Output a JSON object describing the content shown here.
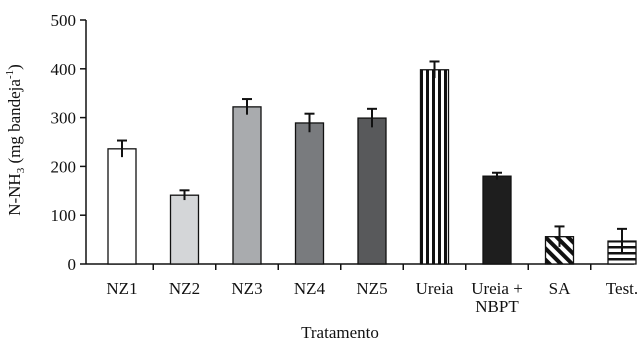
{
  "chart_data": {
    "type": "bar",
    "title": "",
    "xlabel": "Tratamento",
    "ylabel": "N-NH3 (mg bandeja-1)",
    "ylabel_parts": {
      "main": "N-NH",
      "sub": "3",
      "middle": " (mg bandeja",
      "sup": "-1",
      "end": ")"
    },
    "ylim": [
      0,
      500
    ],
    "yticks": [
      0,
      100,
      200,
      300,
      400,
      500
    ],
    "grid": false,
    "categories": [
      "NZ1",
      "NZ2",
      "NZ3",
      "NZ4",
      "NZ5",
      "Ureia",
      "Ureia + NBPT",
      "SA",
      "Test."
    ],
    "category_lines": [
      [
        "NZ1"
      ],
      [
        "NZ2"
      ],
      [
        "NZ3"
      ],
      [
        "NZ4"
      ],
      [
        "NZ5"
      ],
      [
        "Ureia"
      ],
      [
        "Ureia +",
        "NBPT"
      ],
      [
        "SA"
      ],
      [
        "Test."
      ]
    ],
    "values": [
      236,
      141,
      322,
      289,
      299,
      398,
      180,
      56,
      47
    ],
    "errors": [
      17,
      10,
      16,
      19,
      19,
      17,
      7,
      21,
      25
    ],
    "fills": [
      "white",
      "#d4d6d8",
      "#a9abae",
      "#797b7e",
      "#58595b",
      "vertical-stripes",
      "#1e1e1e",
      "diagonal-stripes",
      "horizontal-stripes"
    ]
  }
}
